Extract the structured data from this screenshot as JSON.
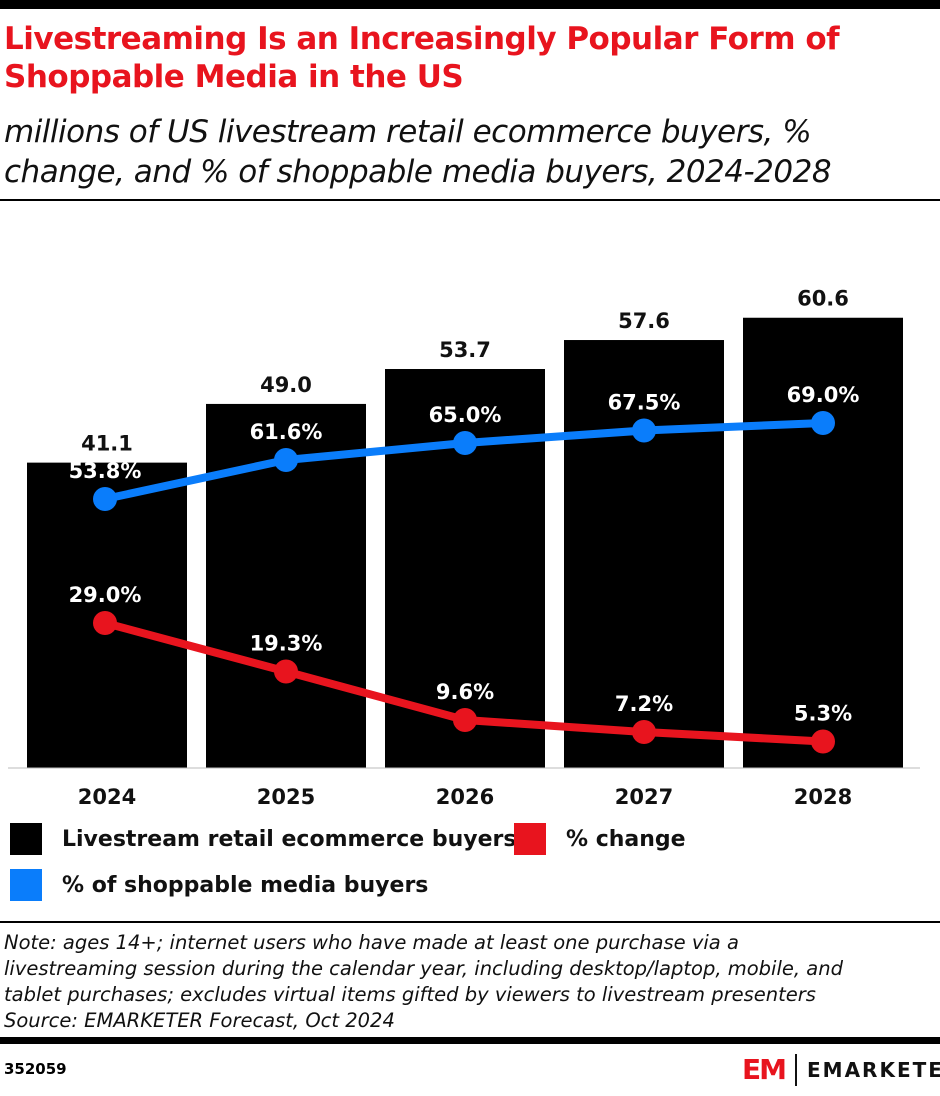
{
  "title": "Livestreaming Is an Increasingly Popular Form of Shoppable Media in the US",
  "subtitle": "millions of US livestream retail ecommerce buyers, % change, and % of shoppable media buyers, 2024-2028",
  "chart_data": {
    "type": "bar",
    "categories": [
      "2024",
      "2025",
      "2026",
      "2027",
      "2028"
    ],
    "series": [
      {
        "name": "Livestream retail ecommerce buyers",
        "type": "bar",
        "values": [
          41.1,
          49.0,
          53.7,
          57.6,
          60.6
        ],
        "labels": [
          "41.1",
          "49.0",
          "53.7",
          "57.6",
          "60.6"
        ],
        "color": "#000000"
      },
      {
        "name": "% change",
        "type": "line",
        "values": [
          29.0,
          19.3,
          9.6,
          7.2,
          5.3
        ],
        "labels": [
          "29.0%",
          "19.3%",
          "9.6%",
          "7.2%",
          "5.3%"
        ],
        "color": "#e8141e"
      },
      {
        "name": "% of shoppable media buyers",
        "type": "line",
        "values": [
          53.8,
          61.6,
          65.0,
          67.5,
          69.0
        ],
        "labels": [
          "53.8%",
          "61.6%",
          "65.0%",
          "67.5%",
          "69.0%"
        ],
        "color": "#0a7dfb"
      }
    ],
    "grid": false,
    "legend": "bottom"
  },
  "note": [
    "Note: ages 14+; internet users who have made at least one purchase via a",
    "livestreaming session during the calendar year, including desktop/laptop, mobile, and",
    "tablet purchases; excludes virtual items gifted by viewers to livestream presenters",
    "Source: EMARKETER Forecast, Oct 2024"
  ],
  "chart_id": "352059",
  "logo": {
    "mark": "EM",
    "name": "EMARKETER"
  }
}
